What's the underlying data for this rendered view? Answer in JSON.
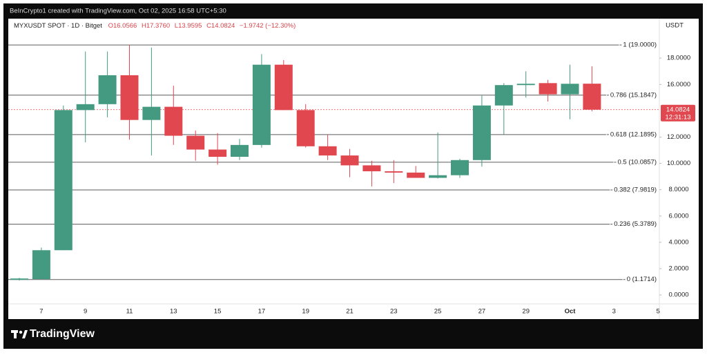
{
  "header": "BeInCrypto1 created with TradingView.com, Oct 02, 2025 16:58 UTC+5:30",
  "brand": "TradingView",
  "chart_data": {
    "type": "candlestick",
    "symbol": "MYXUSDT SPOT · 1D · Bitget",
    "ohlc_legend": [
      "O16.0566",
      "H17.3760",
      "L13.9595",
      "C14.0824"
    ],
    "change_label": "−1.9742 (−12.30%)",
    "y_axis_label": "USDT",
    "categories": [
      null,
      "7",
      null,
      "9",
      null,
      "11",
      null,
      "13",
      null,
      "15",
      null,
      "17",
      null,
      "19",
      null,
      "21",
      null,
      "23",
      null,
      "25",
      null,
      "27",
      null,
      "29",
      null,
      "Oct",
      null,
      "3",
      null,
      "5"
    ],
    "open": [
      1.15,
      1.2,
      3.4,
      14.05,
      14.5,
      16.7,
      13.3,
      14.3,
      12.1,
      11.05,
      10.5,
      11.4,
      17.5,
      14.05,
      11.3,
      10.6,
      9.85,
      9.4,
      9.3,
      8.9,
      9.1,
      10.25,
      14.4,
      15.95,
      16.1,
      15.25,
      16.0566,
      null,
      null,
      null
    ],
    "high": [
      1.3,
      3.6,
      14.4,
      18.5,
      18.5,
      19.0,
      18.8,
      15.9,
      12.5,
      12.3,
      11.85,
      18.3,
      17.85,
      14.5,
      12.2,
      11.1,
      10.2,
      10.25,
      9.8,
      12.35,
      10.35,
      15.15,
      16.1,
      17.0,
      16.35,
      17.5,
      17.376,
      null,
      null,
      null
    ],
    "low": [
      1.1,
      1.2,
      3.4,
      11.6,
      13.5,
      11.8,
      10.6,
      11.4,
      10.2,
      9.9,
      10.25,
      11.2,
      14.05,
      11.2,
      10.25,
      8.95,
      8.25,
      8.5,
      8.9,
      8.85,
      8.9,
      9.75,
      12.2,
      15.0,
      14.7,
      13.35,
      13.9595,
      null,
      null,
      null
    ],
    "close": [
      1.25,
      3.4,
      14.05,
      14.5,
      16.7,
      13.3,
      14.3,
      12.1,
      11.05,
      10.5,
      11.4,
      17.5,
      14.05,
      11.3,
      10.6,
      9.85,
      9.4,
      9.3,
      8.9,
      9.1,
      10.25,
      14.4,
      15.95,
      16.05,
      15.25,
      16.05,
      14.0824,
      null,
      null,
      null
    ],
    "up_color": "#449a81",
    "down_color": "#e0474f",
    "last_price": 14.0824,
    "countdown": "12:31:13",
    "levels": [
      {
        "label": "1 (19.0000)",
        "value": 19.0
      },
      {
        "label": "0.786 (15.1847)",
        "value": 15.1847
      },
      {
        "label": "0.618 (12.1895)",
        "value": 12.1895
      },
      {
        "label": "0.5 (10.0857)",
        "value": 10.0857
      },
      {
        "label": "0.382 (7.9819)",
        "value": 7.9819
      },
      {
        "label": "0.236 (5.3789)",
        "value": 5.3789
      },
      {
        "label": "0 (1.1714)",
        "value": 1.1714
      }
    ],
    "level_color": "#5a5a5a",
    "ylim": [
      -0.68,
      21
    ],
    "yticks": [
      {
        "value": 0,
        "label": "0.0000"
      },
      {
        "value": 2,
        "label": "2.0000"
      },
      {
        "value": 4,
        "label": "4.0000"
      },
      {
        "value": 6,
        "label": "6.0000"
      },
      {
        "value": 8,
        "label": "8.0000"
      },
      {
        "value": 10,
        "label": "10.0000"
      },
      {
        "value": 12,
        "label": "12.0000"
      },
      {
        "value": 16,
        "label": "16.0000"
      },
      {
        "value": 18,
        "label": "18.0000"
      }
    ]
  }
}
